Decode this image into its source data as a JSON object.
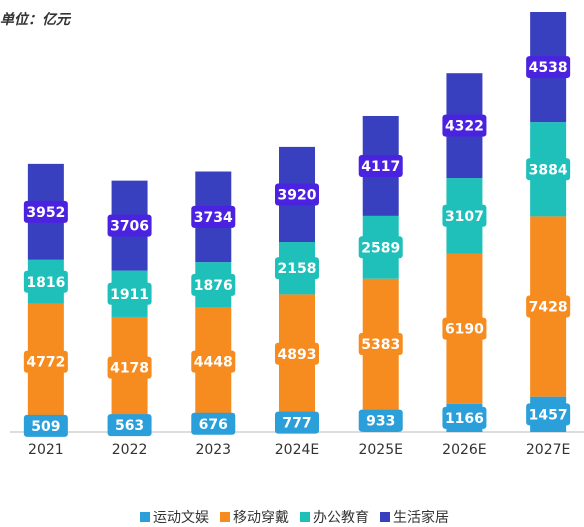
{
  "chart_data": {
    "type": "stacked_bar",
    "subtitle": "单位：亿元",
    "categories": [
      "2021",
      "2022",
      "2023",
      "2024E",
      "2025E",
      "2026E",
      "2027E"
    ],
    "series": [
      {
        "name": "运动文娱",
        "color": "#2b9fd9",
        "values": [
          509,
          563,
          676,
          777,
          933,
          1166,
          1457
        ]
      },
      {
        "name": "移动穿戴",
        "color": "#f68b1f",
        "values": [
          4772,
          4178,
          4448,
          4893,
          5383,
          6190,
          7428
        ]
      },
      {
        "name": "办公教育",
        "color": "#1fc0b9",
        "values": [
          1816,
          1911,
          1876,
          2158,
          2589,
          3107,
          3884
        ]
      },
      {
        "name": "生活家居",
        "color": "#3940c0",
        "values": [
          3952,
          3706,
          3734,
          3920,
          4117,
          4322,
          4538
        ]
      }
    ]
  }
}
